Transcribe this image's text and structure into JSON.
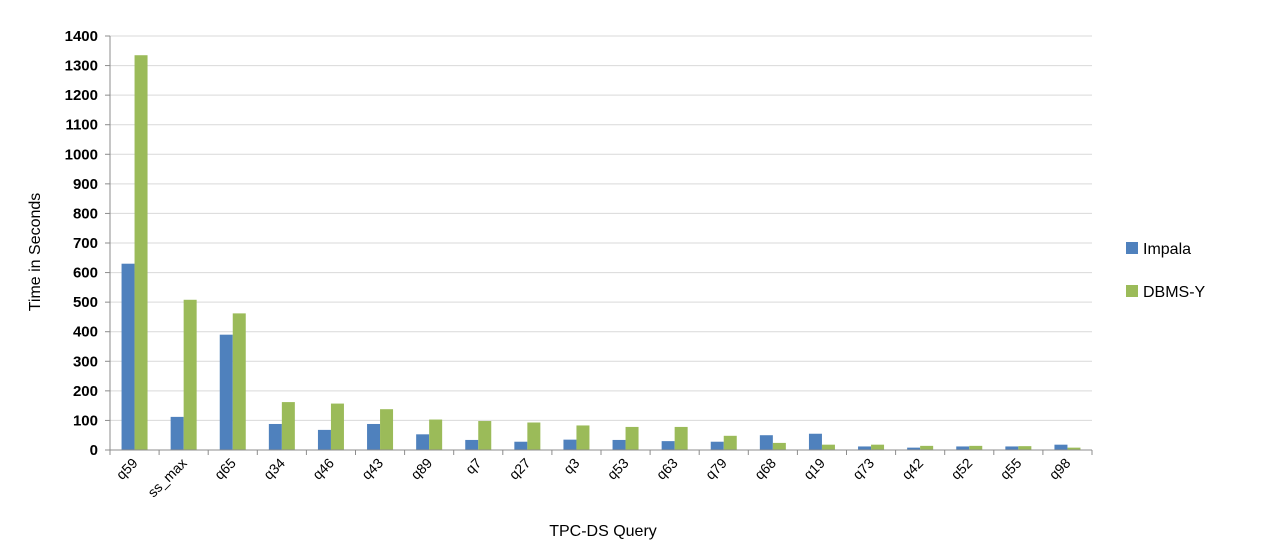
{
  "chart_data": {
    "type": "bar",
    "xlabel": "TPC-DS Query",
    "ylabel": "Time in Seconds",
    "ylim": [
      0,
      1400
    ],
    "ytick_step": 100,
    "grid": true,
    "legend_position": "right",
    "categories": [
      "q59",
      "ss_max",
      "q65",
      "q34",
      "q46",
      "q43",
      "q89",
      "q7",
      "q27",
      "q3",
      "q53",
      "q63",
      "q79",
      "q68",
      "q19",
      "q73",
      "q42",
      "q52",
      "q55",
      "q98"
    ],
    "series": [
      {
        "name": "Impala",
        "color": "#4f81bd",
        "values": [
          630,
          112,
          390,
          88,
          68,
          88,
          53,
          34,
          28,
          35,
          34,
          30,
          28,
          50,
          55,
          12,
          8,
          12,
          12,
          18
        ]
      },
      {
        "name": "DBMS-Y",
        "color": "#9bbb59",
        "values": [
          1335,
          508,
          462,
          162,
          157,
          138,
          103,
          98,
          93,
          83,
          78,
          78,
          48,
          24,
          18,
          18,
          14,
          14,
          13,
          8
        ]
      }
    ]
  }
}
